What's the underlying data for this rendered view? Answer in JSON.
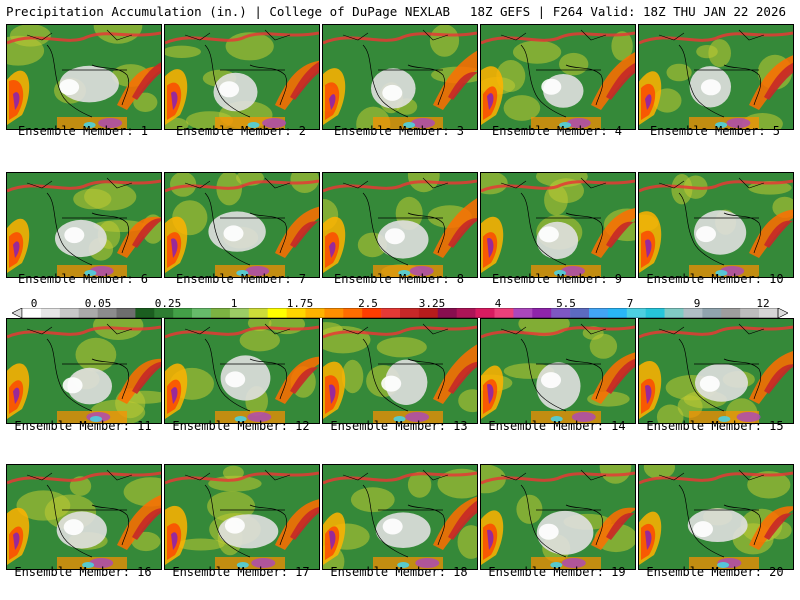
{
  "header": {
    "left": "Precipitation Accumulation (in.) | College of DuPage NEXLAB",
    "right": "18Z GEFS | F264 Valid: 18Z THU JAN 22 2026"
  },
  "panels": [
    {
      "label": "Ensemble Member: 1"
    },
    {
      "label": "Ensemble Member: 2"
    },
    {
      "label": "Ensemble Member: 3"
    },
    {
      "label": "Ensemble Member: 4"
    },
    {
      "label": "Ensemble Member: 5"
    },
    {
      "label": "Ensemble Member: 6"
    },
    {
      "label": "Ensemble Member: 7"
    },
    {
      "label": "Ensemble Member: 8"
    },
    {
      "label": "Ensemble Member: 9"
    },
    {
      "label": "Ensemble Member: 10"
    },
    {
      "label": "Ensemble Member: 11"
    },
    {
      "label": "Ensemble Member: 12"
    },
    {
      "label": "Ensemble Member: 13"
    },
    {
      "label": "Ensemble Member: 14"
    },
    {
      "label": "Ensemble Member: 15"
    },
    {
      "label": "Ensemble Member: 16"
    },
    {
      "label": "Ensemble Member: 17"
    },
    {
      "label": "Ensemble Member: 18"
    },
    {
      "label": "Ensemble Member: 19"
    },
    {
      "label": "Ensemble Member: 20"
    }
  ],
  "colorbar": {
    "ticks": [
      "0",
      "0.05",
      "0.25",
      "1",
      "1.75",
      "2.5",
      "3.25",
      "4",
      "5.5",
      "7",
      "9",
      "12"
    ],
    "colors": [
      "#ffffff",
      "#e6e6e6",
      "#c8c8c8",
      "#aaaaaa",
      "#8c8c8c",
      "#6e6e6e",
      "#1b5e20",
      "#2e7d32",
      "#43a047",
      "#66bb6a",
      "#7cb342",
      "#9ccc65",
      "#cddc39",
      "#ffff00",
      "#ffd600",
      "#ffb300",
      "#ff8f00",
      "#ff6d00",
      "#ff3d00",
      "#e53935",
      "#c62828",
      "#b71c1c",
      "#880e4f",
      "#ad1457",
      "#d81b60",
      "#ec407a",
      "#ab47bc",
      "#8e24aa",
      "#7e57c2",
      "#5c6bc0",
      "#42a5f5",
      "#29b6f6",
      "#4dd0e1",
      "#26c6da",
      "#80cbc4",
      "#b0bec5",
      "#90a4ae",
      "#9e9e9e",
      "#bdbdbd",
      "#d6d6d6"
    ]
  }
}
